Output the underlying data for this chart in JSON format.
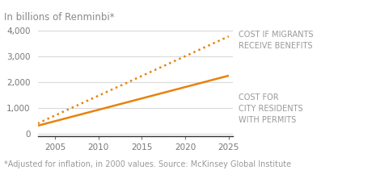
{
  "title": "In billions of Renminbi*",
  "footnote": "*Adjusted for inflation, in 2000 values. Source: McKinsey Global Institute",
  "xlim": [
    2003,
    2025.5
  ],
  "ylim": [
    -100,
    4400
  ],
  "yticks": [
    0,
    1000,
    2000,
    3000,
    4000
  ],
  "xticks": [
    2005,
    2010,
    2015,
    2020,
    2025
  ],
  "line_solid": {
    "x": [
      2003,
      2025
    ],
    "y": [
      300,
      2250
    ],
    "color": "#E8820C",
    "linewidth": 1.8
  },
  "line_dotted": {
    "x": [
      2003,
      2025
    ],
    "y": [
      390,
      3780
    ],
    "color": "#E8820C",
    "linewidth": 1.8
  },
  "label_migrants": "COST IF MIGRANTS\nRECEIVE BENEFITS",
  "label_residents": "COST FOR\nCITY RESIDENTS\nWITH PERMITS",
  "annotation_color": "#999999",
  "title_color": "#888888",
  "title_fontsize": 8.5,
  "tick_fontsize": 7.5,
  "footnote_fontsize": 7.0,
  "label_fontsize": 7.0,
  "background_color": "#ffffff",
  "grid_color": "#d0d0d0"
}
